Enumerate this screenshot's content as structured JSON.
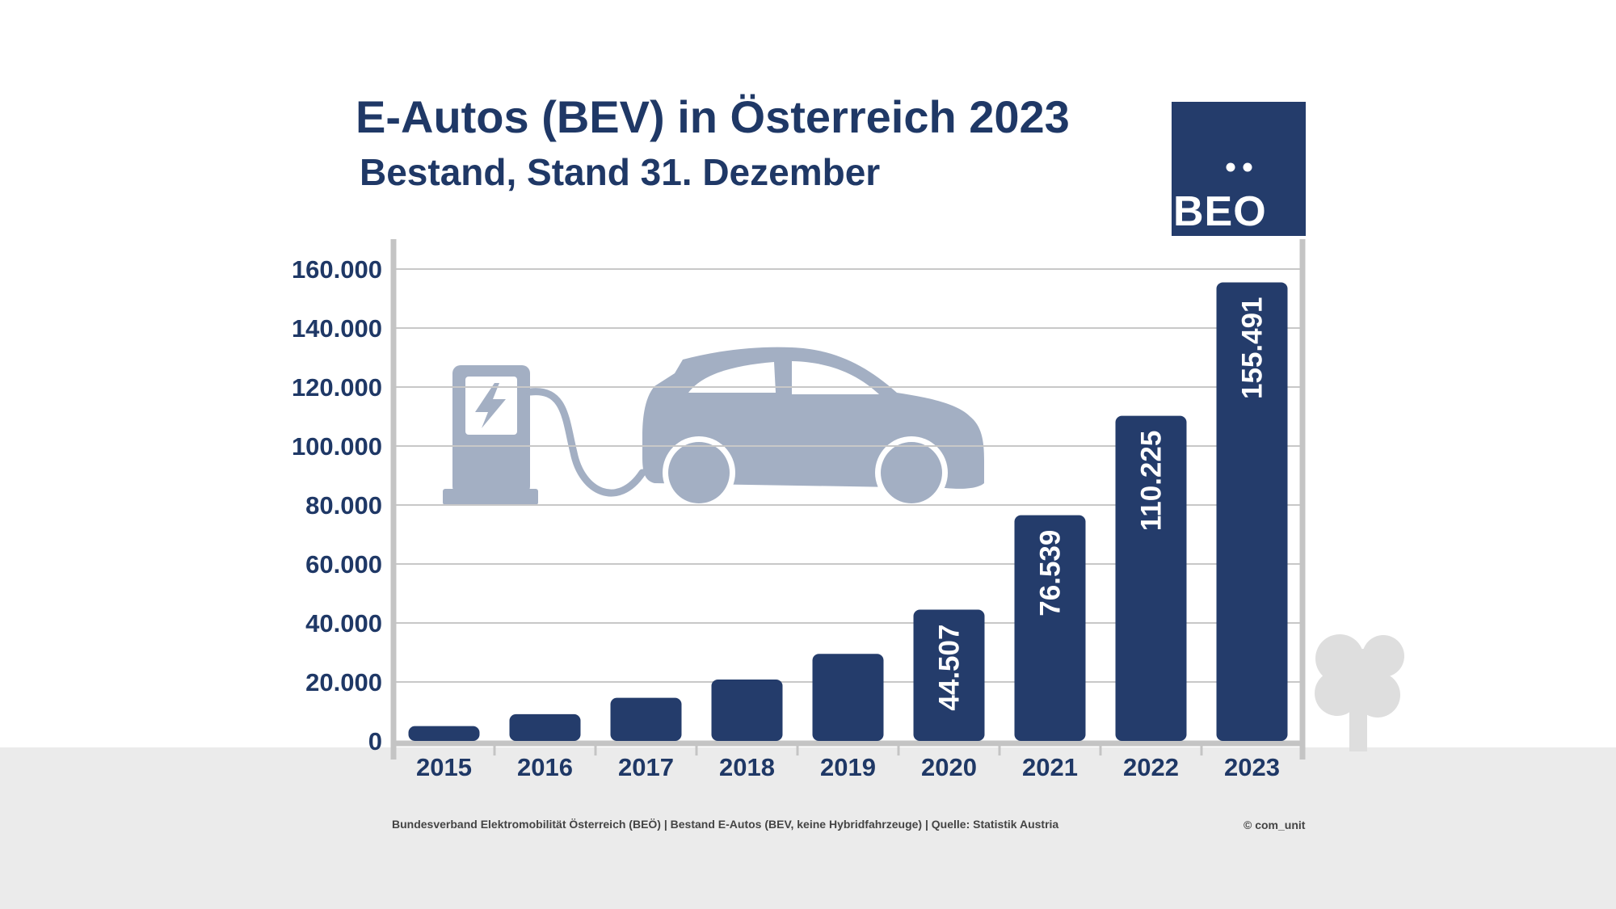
{
  "header": {
    "title": "E-Autos (BEV) in Österreich 2023",
    "subtitle": "Bestand, Stand 31. Dezember"
  },
  "logo": {
    "text": "BEO",
    "color": "#243c6b"
  },
  "footer": {
    "source": "Bundesverband Elektromobilität Österreich (BEÖ) | Bestand E-Autos (BEV, keine Hybridfahrzeuge) | Quelle: Statistik Austria",
    "copyright": "© com_unit"
  },
  "colors": {
    "bar": "#243c6b",
    "text": "#1f3866",
    "grid": "#c8c8c8",
    "axis": "#c4c4c4",
    "illustration": "#a3afc3",
    "tree": "#dedede",
    "ground": "#ebebeb"
  },
  "illustration": {
    "icons": [
      "charging-station-icon",
      "electric-car-icon",
      "tree-icon"
    ]
  },
  "chart_data": {
    "type": "bar",
    "categories": [
      "2015",
      "2016",
      "2017",
      "2018",
      "2019",
      "2020",
      "2021",
      "2022",
      "2023"
    ],
    "values": [
      5032,
      9073,
      14618,
      20831,
      29523,
      44507,
      76539,
      110225,
      155491
    ],
    "data_labels": [
      "",
      "",
      "",
      "",
      "",
      "44.507",
      "76.539",
      "110.225",
      "155.491"
    ],
    "ylim": [
      0,
      160000
    ],
    "yticks": [
      0,
      20000,
      40000,
      60000,
      80000,
      100000,
      120000,
      140000,
      160000
    ],
    "ytick_labels": [
      "0",
      "20.000",
      "40.000",
      "60.000",
      "80.000",
      "100.000",
      "120.000",
      "140.000",
      "160.000"
    ],
    "grid": true,
    "xlabel": "",
    "ylabel": ""
  }
}
